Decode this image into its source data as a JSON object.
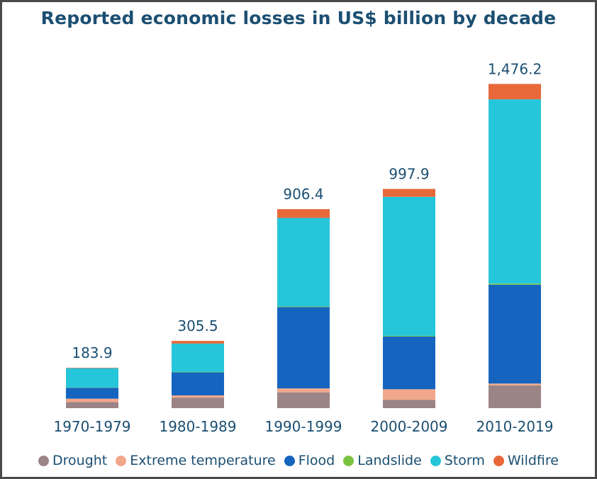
{
  "chart_data": {
    "type": "bar",
    "stacked": true,
    "title": "Reported economic losses in US$ billion by decade",
    "xlabel": "",
    "ylabel": "",
    "ylim": [
      0,
      1600
    ],
    "grid": false,
    "legend_position": "bottom",
    "categories": [
      "1970-1979",
      "1980-1989",
      "1990-1999",
      "2000-2009",
      "2010-2019"
    ],
    "totals": [
      "183.9",
      "305.5",
      "906.4",
      "997.9",
      "1,476.2"
    ],
    "total_values": [
      183.9,
      305.5,
      906.4,
      997.9,
      1476.2
    ],
    "series": [
      {
        "name": "Drought",
        "color": "#9b8485",
        "values": [
          28,
          48,
          72,
          38,
          104
        ]
      },
      {
        "name": "Extreme temperature",
        "color": "#f2a78a",
        "values": [
          15,
          10,
          18,
          48,
          8
        ]
      },
      {
        "name": "Flood",
        "color": "#1565c0",
        "values": [
          50,
          105,
          370,
          240,
          450
        ]
      },
      {
        "name": "Landslide",
        "color": "#7cc242",
        "values": [
          1,
          2,
          3,
          3,
          5
        ]
      },
      {
        "name": "Storm",
        "color": "#26c6da",
        "values": [
          88,
          129,
          403,
          633,
          839
        ]
      },
      {
        "name": "Wildfire",
        "color": "#e8683a",
        "values": [
          2,
          12,
          40,
          36,
          70
        ]
      }
    ]
  }
}
